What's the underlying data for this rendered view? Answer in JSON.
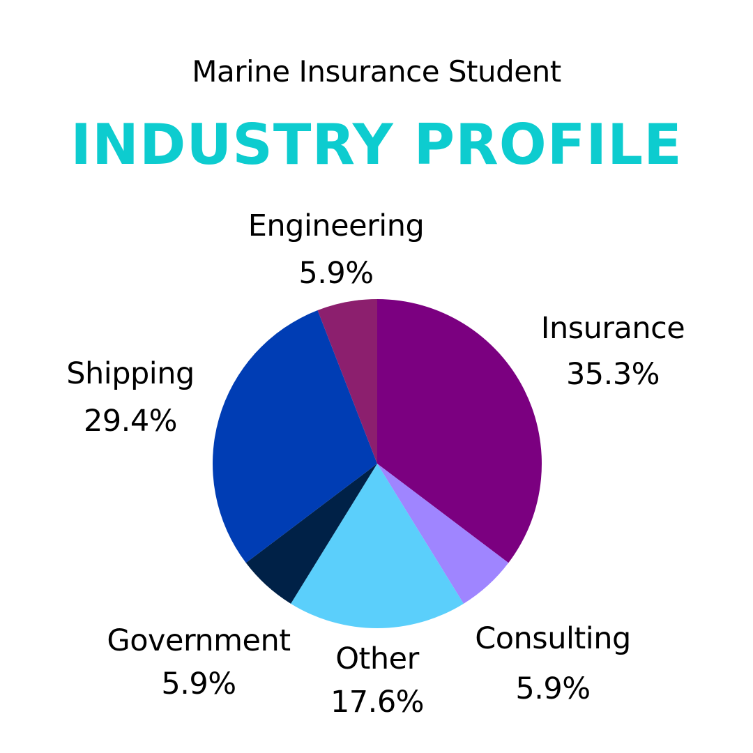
{
  "header": {
    "subtitle": "Marine Insurance Student",
    "title": "INDUSTRY PROFILE",
    "title_color": "#0DCCCF"
  },
  "chart_data": {
    "type": "pie",
    "start_angle_deg": 0,
    "direction": "clockwise",
    "slices": [
      {
        "label": "Insurance",
        "value": 35.3,
        "value_label": "35.3%",
        "color": "#7B0080"
      },
      {
        "label": "Consulting",
        "value": 5.9,
        "value_label": "5.9%",
        "color": "#9F85FF"
      },
      {
        "label": "Other",
        "value": 17.6,
        "value_label": "17.6%",
        "color": "#5BCFFB"
      },
      {
        "label": "Government",
        "value": 5.9,
        "value_label": "5.9%",
        "color": "#002147"
      },
      {
        "label": "Shipping",
        "value": 29.4,
        "value_label": "29.4%",
        "color": "#003DB4"
      },
      {
        "label": "Engineering",
        "value": 5.9,
        "value_label": "5.9%",
        "color": "#8C1F6E"
      }
    ]
  }
}
